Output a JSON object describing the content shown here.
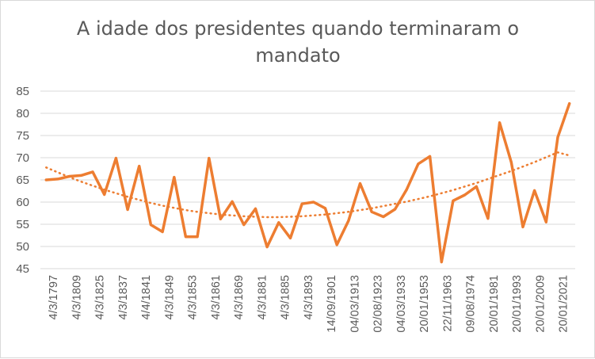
{
  "chart_data": {
    "type": "line",
    "title": "A idade dos presidentes quando terminaram o mandato",
    "xlabel": "",
    "ylabel": "",
    "ylim": [
      45,
      85
    ],
    "yticks": [
      "45",
      "50",
      "55",
      "60",
      "65",
      "70",
      "75",
      "80",
      "85"
    ],
    "grid": true,
    "legend": "none",
    "x_tick_labels": [
      "4/3/1797",
      "4/3/1809",
      "4/3/1825",
      "4/3/1837",
      "4/4/1841",
      "4/3/1849",
      "4/3/1853",
      "4/3/1861",
      "4/3/1869",
      "4/3/1881",
      "4/3/1885",
      "4/3/1893",
      "14/09/1901",
      "04/03/1913",
      "02/08/1923",
      "04/03/1933",
      "20/01/1953",
      "22/11/1963",
      "09/08/1974",
      "20/01/1981",
      "20/01/1993",
      "20/01/2009",
      "20/01/2021"
    ],
    "series": [
      {
        "type": "line",
        "color": "#ED7D31",
        "values": [
          65,
          65.2,
          65.8,
          66,
          66.8,
          61.7,
          69.9,
          58.3,
          68.1,
          54.9,
          53.3,
          65.6,
          52.2,
          52.2,
          69.9,
          56.2,
          60.1,
          54.9,
          58.5,
          49.9,
          55.4,
          51.9,
          59.6,
          60,
          58.6,
          50.4,
          55.8,
          64.2,
          57.8,
          56.7,
          58.4,
          62.8,
          68.6,
          70.3,
          46.5,
          60.3,
          61.6,
          63.5,
          56.3,
          77.9,
          69,
          54.4,
          62.6,
          55.5,
          74.6,
          82.2
        ]
      },
      {
        "type": "trendline",
        "style": "dotted",
        "color": "#ED7D31",
        "values": [
          67.8,
          66.7,
          65.6,
          64.6,
          63.7,
          62.8,
          62,
          61.2,
          60.5,
          59.8,
          59.2,
          58.7,
          58.2,
          57.8,
          57.5,
          57.2,
          57,
          56.8,
          56.7,
          56.6,
          56.6,
          56.7,
          56.8,
          57,
          57.2,
          57.5,
          57.8,
          58.2,
          58.6,
          59.1,
          59.6,
          60.1,
          60.7,
          61.3,
          62,
          62.7,
          63.5,
          64.3,
          65.2,
          66.1,
          67,
          68,
          69,
          70.1,
          71.2,
          70.5
        ]
      }
    ]
  }
}
